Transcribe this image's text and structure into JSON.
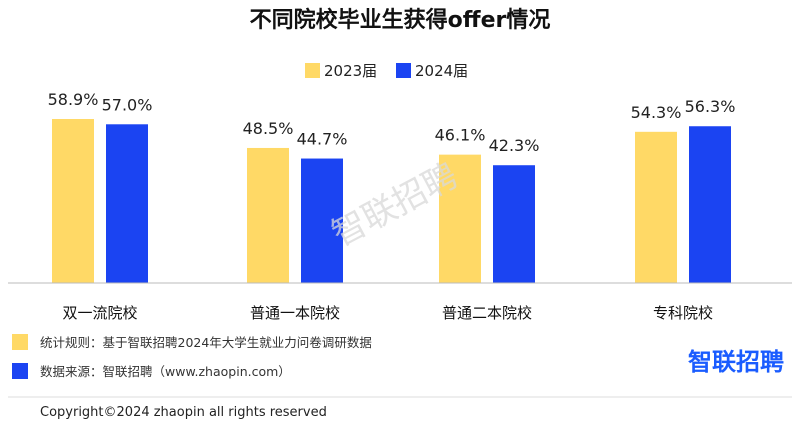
{
  "colors": {
    "series_2023": "#FFD966",
    "series_2024": "#1B44F2",
    "brand": "#1a5cff",
    "axis": "#bbbbbb"
  },
  "watermark": "智联招聘",
  "notes": [
    {
      "text": "统计规则：基于智联招聘2024年大学生就业力问卷调研数据",
      "color_key": "series_2023"
    },
    {
      "text": "数据来源：智联招聘（www.zhaopin.com）",
      "color_key": "series_2024"
    }
  ],
  "brand_logo_text": "智联招聘",
  "copyright": "Copyright©2024 zhaopin all rights reserved",
  "chart_data": {
    "type": "bar",
    "title": "不同院校毕业生获得offer情况",
    "categories": [
      "双一流院校",
      "普通一本院校",
      "普通二本院校",
      "专科院校"
    ],
    "series": [
      {
        "name": "2023届",
        "values": [
          58.9,
          48.5,
          46.1,
          54.3
        ],
        "labels": [
          "58.9%",
          "48.5%",
          "46.1%",
          "54.3%"
        ],
        "color_key": "series_2023"
      },
      {
        "name": "2024届",
        "values": [
          57.0,
          44.7,
          42.3,
          56.3
        ],
        "labels": [
          "57.0%",
          "44.7%",
          "42.3%",
          "56.3%"
        ],
        "color_key": "series_2024"
      }
    ],
    "ylim": [
      0,
      60
    ],
    "grid": false,
    "legend_position": "top-center",
    "xlabel": "",
    "ylabel": ""
  }
}
